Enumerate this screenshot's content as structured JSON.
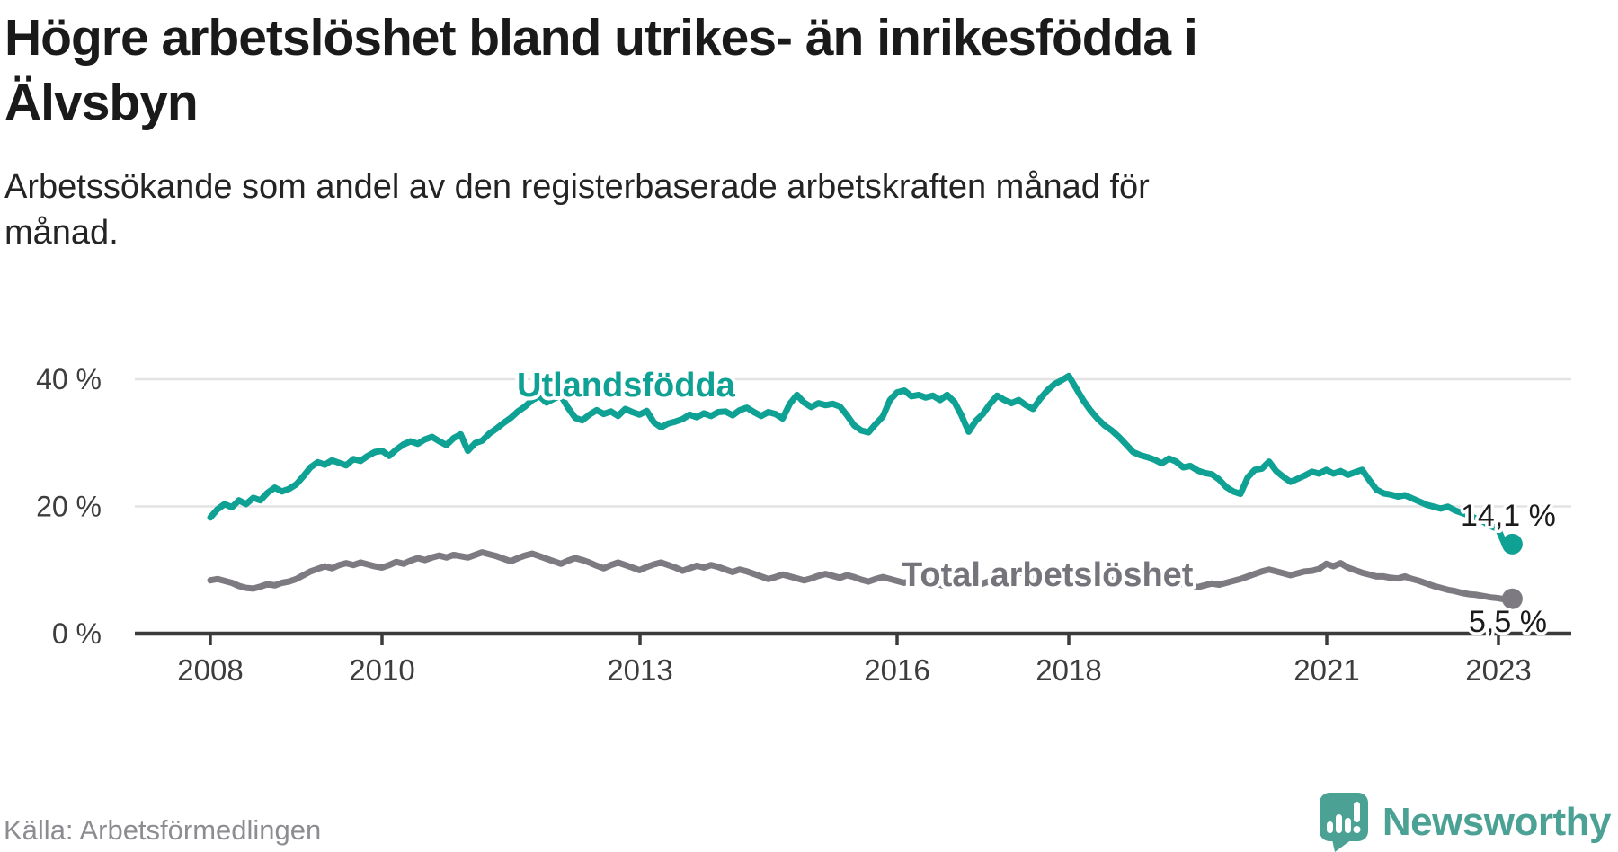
{
  "header": {
    "title": "Högre arbetslöshet bland utrikes- än inrikesfödda i\nÄlvsbyn",
    "subtitle": "Arbetssökande som andel av den registerbaserade arbetskraften månad för\nmånad."
  },
  "chart_data": {
    "type": "line",
    "title": "Högre arbetslöshet bland utrikes- än inrikesfödda i Älvsbyn",
    "ylabel": "Arbetssökande som andel av den registerbaserade arbetskraften",
    "unit": "%",
    "x_range": {
      "start": "2008-01",
      "end": "2023-03",
      "interval": "monthly"
    },
    "ylim": [
      0,
      42
    ],
    "grid": "horizontal",
    "legend_position": "inline-labels",
    "y_ticks": [
      {
        "value": 40,
        "label": "40 %"
      },
      {
        "value": 20,
        "label": "20 %"
      },
      {
        "value": 0,
        "label": "0 %"
      }
    ],
    "x_ticks": [
      {
        "value": 2008,
        "label": "2008"
      },
      {
        "value": 2010,
        "label": "2010"
      },
      {
        "value": 2013,
        "label": "2013"
      },
      {
        "value": 2016,
        "label": "2016"
      },
      {
        "value": 2018,
        "label": "2018"
      },
      {
        "value": 2021,
        "label": "2021"
      },
      {
        "value": 2023,
        "label": "2023"
      }
    ],
    "series": [
      {
        "id": "utlandsfodda",
        "name": "Utlandsfödda",
        "color": "#0fa193",
        "end_value": 14.1,
        "end_label": "14,1 %",
        "values": [
          18.3,
          19.6,
          20.4,
          19.9,
          21.0,
          20.4,
          21.4,
          21.0,
          22.2,
          23.0,
          22.4,
          22.8,
          23.5,
          24.8,
          26.2,
          27.0,
          26.6,
          27.3,
          26.9,
          26.5,
          27.5,
          27.2,
          28.0,
          28.6,
          28.8,
          28.0,
          29.0,
          29.8,
          30.3,
          29.9,
          30.6,
          31.0,
          30.3,
          29.7,
          30.8,
          31.4,
          28.8,
          30.0,
          30.4,
          31.5,
          32.3,
          33.2,
          34.0,
          35.0,
          35.8,
          36.8,
          37.4,
          36.4,
          37.0,
          37.5,
          35.6,
          34.0,
          33.6,
          34.5,
          35.2,
          34.6,
          35.0,
          34.3,
          35.4,
          34.9,
          34.5,
          35.1,
          33.3,
          32.5,
          33.1,
          33.4,
          33.8,
          34.5,
          34.1,
          34.7,
          34.3,
          34.9,
          35.0,
          34.4,
          35.2,
          35.6,
          34.9,
          34.3,
          34.9,
          34.6,
          33.9,
          36.2,
          37.6,
          36.4,
          35.7,
          36.3,
          36.0,
          36.2,
          35.8,
          34.4,
          32.8,
          32.0,
          31.7,
          33.0,
          34.2,
          36.8,
          38.0,
          38.3,
          37.4,
          37.6,
          37.2,
          37.5,
          36.8,
          37.6,
          36.5,
          34.4,
          31.8,
          33.5,
          34.6,
          36.2,
          37.5,
          36.8,
          36.3,
          36.8,
          36.0,
          35.4,
          37.0,
          38.3,
          39.3,
          39.9,
          40.6,
          38.7,
          36.8,
          35.2,
          33.9,
          32.8,
          32.0,
          31.0,
          29.8,
          28.6,
          28.1,
          27.8,
          27.4,
          26.8,
          27.6,
          27.1,
          26.2,
          26.4,
          25.7,
          25.3,
          25.1,
          24.3,
          23.1,
          22.4,
          22.0,
          24.6,
          25.8,
          26.0,
          27.1,
          25.6,
          24.7,
          23.9,
          24.4,
          24.9,
          25.5,
          25.2,
          25.8,
          25.2,
          25.6,
          25.0,
          25.4,
          25.8,
          24.2,
          22.7,
          22.1,
          21.9,
          21.6,
          21.8,
          21.3,
          20.8,
          20.3,
          20.0,
          19.7,
          20.0,
          19.4,
          19.0,
          18.6,
          18.1,
          17.6,
          16.9,
          16.5,
          13.9,
          14.1
        ]
      },
      {
        "id": "total",
        "name": "Total arbetslöshet",
        "color": "#7d7b81",
        "end_value": 5.5,
        "end_label": "5,5 %",
        "values": [
          8.4,
          8.6,
          8.3,
          8.0,
          7.5,
          7.2,
          7.1,
          7.4,
          7.8,
          7.6,
          8.0,
          8.2,
          8.6,
          9.2,
          9.8,
          10.2,
          10.6,
          10.3,
          10.8,
          11.1,
          10.8,
          11.2,
          10.9,
          10.6,
          10.4,
          10.8,
          11.3,
          11.0,
          11.5,
          11.9,
          11.6,
          12.0,
          12.3,
          12.0,
          12.4,
          12.2,
          12.0,
          12.4,
          12.8,
          12.5,
          12.2,
          11.8,
          11.4,
          11.9,
          12.3,
          12.6,
          12.2,
          11.8,
          11.4,
          11.0,
          11.5,
          11.9,
          11.6,
          11.2,
          10.7,
          10.3,
          10.8,
          11.2,
          10.8,
          10.4,
          10.0,
          10.5,
          10.9,
          11.2,
          10.8,
          10.4,
          9.9,
          10.3,
          10.7,
          10.4,
          10.8,
          10.5,
          10.1,
          9.7,
          10.1,
          9.8,
          9.4,
          9.0,
          8.6,
          8.9,
          9.3,
          9.0,
          8.7,
          8.4,
          8.7,
          9.1,
          9.4,
          9.1,
          8.8,
          9.2,
          8.9,
          8.5,
          8.2,
          8.6,
          8.9,
          8.6,
          8.3,
          8.0,
          8.4,
          8.7,
          8.4,
          8.0,
          7.7,
          7.4,
          7.8,
          8.1,
          7.8,
          7.5,
          7.9,
          8.3,
          8.7,
          9.0,
          9.4,
          9.7,
          9.4,
          9.0,
          9.6,
          10.0,
          9.7,
          9.3,
          9.0,
          9.4,
          9.7,
          9.4,
          9.0,
          8.7,
          8.4,
          8.7,
          9.0,
          8.7,
          8.4,
          8.1,
          7.8,
          8.1,
          8.4,
          8.1,
          7.8,
          7.6,
          7.3,
          7.6,
          7.9,
          7.7,
          8.0,
          8.3,
          8.6,
          9.0,
          9.4,
          9.8,
          10.1,
          9.8,
          9.5,
          9.2,
          9.5,
          9.8,
          9.9,
          10.2,
          11.0,
          10.6,
          11.1,
          10.4,
          10.0,
          9.6,
          9.3,
          9.0,
          9.0,
          8.8,
          8.7,
          9.0,
          8.6,
          8.3,
          7.9,
          7.5,
          7.2,
          6.9,
          6.7,
          6.4,
          6.2,
          6.1,
          5.9,
          5.7,
          5.6,
          5.4,
          5.5
        ]
      }
    ]
  },
  "footer": {
    "source": "Källa: Arbetsförmedlingen",
    "brand": "Newsworthy"
  },
  "colors": {
    "accent_teal": "#0fa193",
    "line_gray": "#7d7b81",
    "grid": "#e3e3e3",
    "axis": "#3b3b3b",
    "brand_teal": "#4ba294"
  }
}
